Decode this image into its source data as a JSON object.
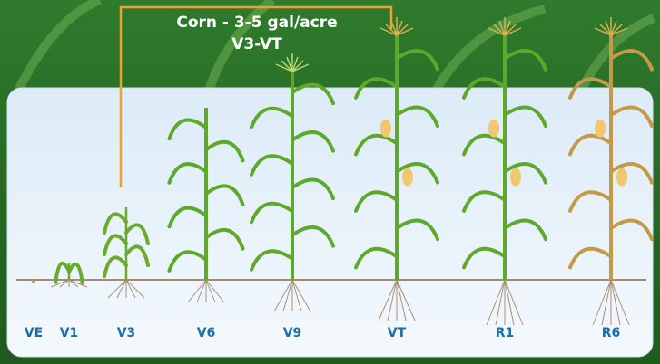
{
  "header": {
    "title": "Corn - 3-5 gal/acre",
    "subtitle": "V3-VT"
  },
  "stages": [
    "VE",
    "V1",
    "V3",
    "V6",
    "V9",
    "VT",
    "R1",
    "R6"
  ]
}
